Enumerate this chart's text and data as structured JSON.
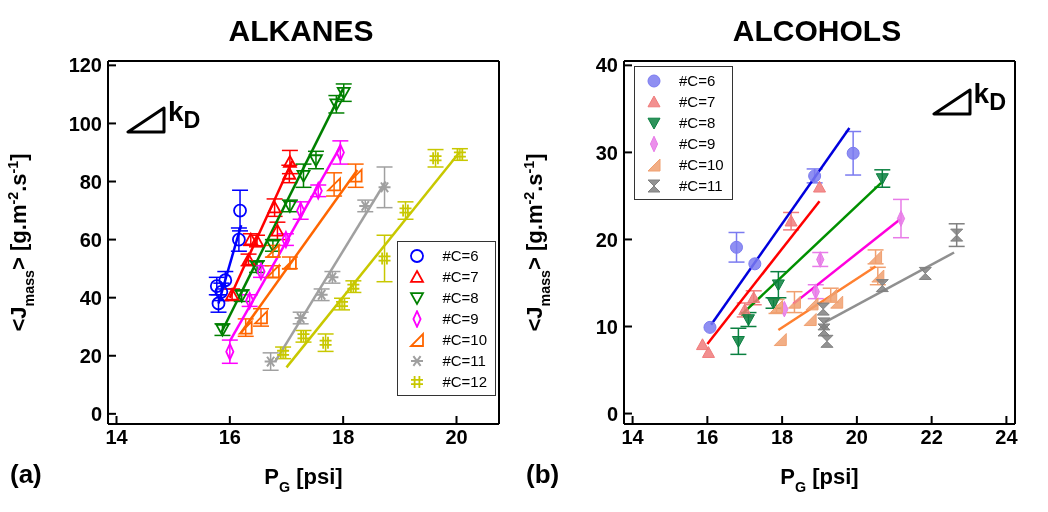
{
  "chart_data": [
    {
      "type": "scatter",
      "title": "ALKANES",
      "xlabel": "P$_{G}$ [psi]",
      "ylabel": "<J$_{mass}$> [g.m$^{-2}$.s$^{-1}$]",
      "annotations": [
        "(a)",
        "k$_{D}$"
      ],
      "xlim": [
        13.85,
        20.75
      ],
      "xticks": [
        14,
        16,
        18,
        20
      ],
      "ylim": [
        -3.5,
        121.5
      ],
      "yticks": [
        0,
        20,
        40,
        60,
        80,
        100,
        120
      ],
      "grid": false,
      "legend": "bottom right",
      "series": [
        {
          "name": "#C=6",
          "color": "#0000ff",
          "marker": "circle",
          "x": [
            15.77,
            15.8,
            15.85,
            15.92,
            16.16,
            16.18
          ],
          "values": [
            44,
            38,
            42,
            46,
            60,
            70
          ],
          "errors": [
            3,
            3,
            3,
            3,
            4,
            7
          ]
        },
        {
          "name": "#C=7",
          "color": "#ff0000",
          "marker": "triangle",
          "x": [
            16.04,
            16.33,
            16.37,
            16.48,
            16.79,
            16.84,
            17.05,
            17.06
          ],
          "values": [
            41,
            53,
            60,
            59.5,
            71,
            63,
            82.6,
            86.7
          ],
          "errors": [
            2,
            2,
            2,
            2,
            3,
            3,
            3,
            4
          ]
        },
        {
          "name": "#C=8",
          "color": "#008000",
          "marker": "triangle-down",
          "x": [
            15.87,
            16.21,
            16.48,
            16.76,
            17.06,
            17.3,
            17.52,
            17.88,
            18.01
          ],
          "values": [
            29,
            40.7,
            50.7,
            58,
            71.6,
            82,
            87.4,
            106.6,
            110.6
          ],
          "errors": [
            2,
            2,
            2,
            2,
            2,
            4,
            3,
            3,
            3
          ]
        },
        {
          "name": "#C=9",
          "color": "#ff00ff",
          "marker": "diamond",
          "x": [
            16.0,
            16.35,
            16.55,
            16.99,
            17.25,
            17.56,
            17.95
          ],
          "values": [
            21.4,
            39,
            49,
            60,
            70,
            76.8,
            90
          ],
          "errors": [
            4,
            2,
            2,
            2,
            3,
            2,
            4
          ]
        },
        {
          "name": "#C=10",
          "color": "#ff6600",
          "marker": "triangle-left",
          "x": [
            16.28,
            16.55,
            16.76,
            16.76,
            17.06,
            17.84,
            18.22
          ],
          "values": [
            29.7,
            33.2,
            49,
            56,
            52,
            79,
            82
          ],
          "errors": [
            3,
            3,
            2,
            2,
            2,
            4,
            4
          ]
        },
        {
          "name": "#C=11",
          "color": "#a0a0a0",
          "marker": "cross",
          "x": [
            16.72,
            17.25,
            17.62,
            17.81,
            18.39,
            18.73
          ],
          "values": [
            18,
            33,
            41,
            47,
            71.6,
            78
          ],
          "errors": [
            3,
            2,
            2,
            2,
            2,
            7
          ]
        },
        {
          "name": "#C=12",
          "color": "#c8c800",
          "x": [
            16.94,
            17.3,
            17.69,
            17.98,
            18.18,
            18.73,
            19.1,
            19.63,
            20.06
          ],
          "values": [
            21,
            26.7,
            24.5,
            37.8,
            43.8,
            53.5,
            70,
            88,
            89.3
          ],
          "errors": [
            2,
            2,
            3,
            2,
            2,
            8,
            3,
            3,
            2
          ]
        },
        {
          "type": "line",
          "color": "#0000ff",
          "x": [
            15.8,
            16.2
          ],
          "values": [
            38,
            65
          ]
        },
        {
          "type": "line",
          "color": "#ff0000",
          "x": [
            16.0,
            17.1
          ],
          "values": [
            40,
            87
          ]
        },
        {
          "type": "line",
          "color": "#008000",
          "x": [
            15.85,
            18.0
          ],
          "values": [
            28,
            112
          ]
        },
        {
          "type": "line",
          "color": "#ff00ff",
          "x": [
            16.0,
            17.95
          ],
          "values": [
            25,
            92
          ]
        },
        {
          "type": "line",
          "color": "#ff6600",
          "x": [
            16.2,
            18.25
          ],
          "values": [
            28,
            84
          ]
        },
        {
          "type": "line",
          "color": "#a0a0a0",
          "x": [
            16.8,
            18.75
          ],
          "values": [
            18,
            80
          ]
        },
        {
          "type": "line",
          "color": "#c8c800",
          "x": [
            17.0,
            20.05
          ],
          "values": [
            16,
            90
          ]
        }
      ]
    },
    {
      "type": "scatter",
      "title": "ALCOHOLS",
      "xlabel": "P$_{G}$ [psi]",
      "ylabel": "<J$_{mass}$> [g.m$^{-2}$.s$^{-1}$]",
      "annotations": [
        "(b)",
        "k$_{D}$"
      ],
      "xlim": [
        13.77,
        24.23
      ],
      "xticks": [
        14,
        16,
        18,
        20,
        22,
        24
      ],
      "ylim": [
        -1.2,
        40.5
      ],
      "yticks": [
        0,
        10,
        20,
        30,
        40
      ],
      "grid": false,
      "legend": "top left",
      "series": [
        {
          "name": "#C=6",
          "color": "#7b7bf0",
          "marker": "circle",
          "x": [
            16.07,
            16.78,
            17.27,
            18.87,
            19.9
          ],
          "values": [
            9.9,
            19.1,
            17.2,
            27.3,
            29.9
          ],
          "errors": [
            null,
            1.7,
            null,
            0.8,
            2.5
          ]
        },
        {
          "name": "#C=7",
          "color": "#f07b7b",
          "marker": "triangle",
          "x": [
            15.87,
            16.03,
            17.0,
            17.24,
            18.24,
            19.0
          ],
          "values": [
            7.9,
            7,
            11.9,
            13.3,
            22.1,
            26
          ],
          "errors": [
            null,
            null,
            0.8,
            0.8,
            1,
            null
          ]
        },
        {
          "name": "#C=8",
          "color": "#0a8040",
          "marker": "triangle-down",
          "x": [
            16.83,
            17.1,
            17.77,
            17.9,
            20.68
          ],
          "values": [
            8.3,
            10.8,
            12.7,
            14.8,
            27
          ],
          "errors": [
            1.5,
            0.8,
            0.6,
            1.5,
            1
          ]
        },
        {
          "name": "#C=9",
          "color": "#e87be8",
          "marker": "diamond",
          "x": [
            18.06,
            18.9,
            19.02,
            21.18
          ],
          "values": [
            12,
            14,
            17.7,
            22.4
          ],
          "errors": [
            null,
            0.8,
            0.8,
            2.2
          ]
        },
        {
          "name": "#C=10",
          "color": "#f0a070",
          "marker": "triangle-left",
          "x": [
            17.95,
            17.85,
            18.33,
            18.75,
            18.8,
            19.3,
            19.46,
            20.5,
            20.56
          ],
          "values": [
            8.5,
            12.3,
            12.8,
            10.8,
            12.6,
            13.6,
            12.8,
            18,
            15.8
          ],
          "errors": [
            null,
            0.8,
            1.2,
            null,
            null,
            0.8,
            null,
            0.8,
            1
          ]
        },
        {
          "name": "#C=11",
          "color": "#808080",
          "x": [
            19.1,
            19.12,
            19.12,
            19.2,
            20.68,
            21.83,
            22.67
          ],
          "values": [
            12,
            10.3,
            9.6,
            8.3,
            14.7,
            16.1,
            20.5
          ],
          "errors": [
            null,
            null,
            null,
            null,
            null,
            null,
            1.3
          ]
        },
        {
          "type": "line",
          "color": "#0000dd",
          "x": [
            16.1,
            19.8
          ],
          "values": [
            10.2,
            32.8
          ]
        },
        {
          "type": "line",
          "color": "#ff0000",
          "x": [
            16.0,
            19.0
          ],
          "values": [
            8,
            24.4
          ]
        },
        {
          "type": "line",
          "color": "#009000",
          "x": [
            16.9,
            20.65
          ],
          "values": [
            11.3,
            26.5
          ]
        },
        {
          "type": "line",
          "color": "#ff00dd",
          "x": [
            18.3,
            21.15
          ],
          "values": [
            12.6,
            22.3
          ]
        },
        {
          "type": "line",
          "color": "#ff8030",
          "x": [
            17.9,
            20.5
          ],
          "values": [
            9.6,
            16.9
          ]
        },
        {
          "type": "line",
          "color": "#909090",
          "x": [
            19.15,
            22.6
          ],
          "values": [
            10.5,
            18.5
          ]
        }
      ]
    }
  ]
}
